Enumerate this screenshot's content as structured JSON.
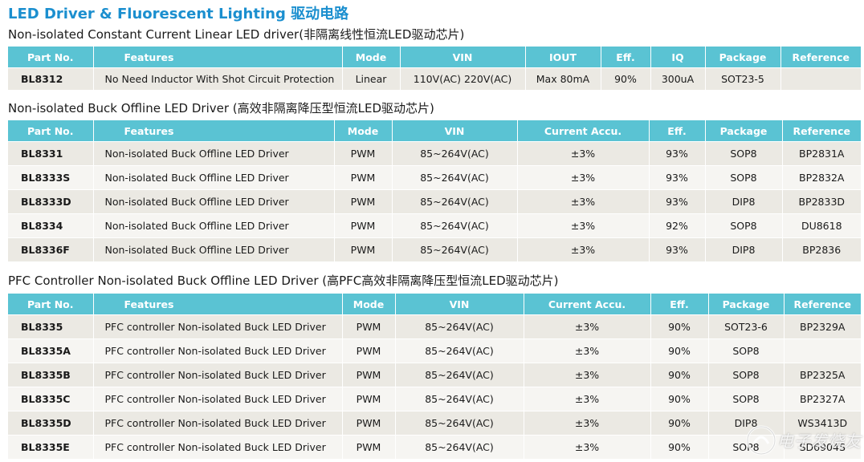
{
  "page_title": "LED Driver & Fluorescent Lighting 驱动电路",
  "sections": [
    {
      "title": "Non-isolated Constant Current Linear LED driver(非隔离线性恒流LED驱动芯片)",
      "headers": [
        "Part No.",
        "Features",
        "Mode",
        "VIN",
        "IOUT",
        "Eff.",
        "IQ",
        "Package",
        "Reference"
      ],
      "rows": [
        [
          "BL8312",
          "No Need Inductor With Shot Circuit Protection",
          "Linear",
          "110V(AC) 220V(AC)",
          "Max 80mA",
          "90%",
          "300uA",
          "SOT23-5",
          ""
        ]
      ]
    },
    {
      "title": "Non-isolated Buck Offline LED Driver (高效非隔离降压型恒流LED驱动芯片)",
      "headers": [
        "Part No.",
        "Features",
        "Mode",
        "VIN",
        "Current Accu.",
        "Eff.",
        "Package",
        "Reference"
      ],
      "rows": [
        [
          "BL8331",
          "Non-isolated Buck Offline LED Driver",
          "PWM",
          "85~264V(AC)",
          "±3%",
          "93%",
          "SOP8",
          "BP2831A"
        ],
        [
          "BL8333S",
          "Non-isolated Buck Offline LED Driver",
          "PWM",
          "85~264V(AC)",
          "±3%",
          "93%",
          "SOP8",
          "BP2832A"
        ],
        [
          "BL8333D",
          "Non-isolated Buck Offline LED Driver",
          "PWM",
          "85~264V(AC)",
          "±3%",
          "93%",
          "DIP8",
          "BP2833D"
        ],
        [
          "BL8334",
          "Non-isolated Buck Offline LED Driver",
          "PWM",
          "85~264V(AC)",
          "±3%",
          "92%",
          "SOP8",
          "DU8618"
        ],
        [
          "BL8336F",
          "Non-isolated Buck Offline LED Driver",
          "PWM",
          "85~264V(AC)",
          "±3%",
          "93%",
          "DIP8",
          "BP2836"
        ]
      ]
    },
    {
      "title": "PFC Controller Non-isolated Buck Offline LED Driver (高PFC高效非隔离降压型恒流LED驱动芯片)",
      "headers": [
        "Part No.",
        "Features",
        "Mode",
        "VIN",
        "Current Accu.",
        "Eff.",
        "Package",
        "Reference"
      ],
      "rows": [
        [
          "BL8335",
          "PFC controller Non-isolated Buck LED Driver",
          "PWM",
          "85~264V(AC)",
          "±3%",
          "90%",
          "SOT23-6",
          "BP2329A"
        ],
        [
          "BL8335A",
          "PFC controller Non-isolated Buck LED Driver",
          "PWM",
          "85~264V(AC)",
          "±3%",
          "90%",
          "SOP8",
          ""
        ],
        [
          "BL8335B",
          "PFC controller Non-isolated Buck LED Driver",
          "PWM",
          "85~264V(AC)",
          "±3%",
          "90%",
          "SOP8",
          "BP2325A"
        ],
        [
          "BL8335C",
          "PFC controller Non-isolated Buck LED Driver",
          "PWM",
          "85~264V(AC)",
          "±3%",
          "90%",
          "SOP8",
          "BP2327A"
        ],
        [
          "BL8335D",
          "PFC controller Non-isolated Buck LED Driver",
          "PWM",
          "85~264V(AC)",
          "±3%",
          "90%",
          "DIP8",
          "WS3413D"
        ],
        [
          "BL8335E",
          "PFC controller Non-isolated Buck LED Driver",
          "PWM",
          "85~264V(AC)",
          "±3%",
          "90%",
          "SOP8",
          "SD6904S"
        ]
      ]
    }
  ],
  "watermark": "电子发烧友",
  "colors": {
    "title": "#1b8fcf",
    "header_bg": "#5ac3d3",
    "row_shade": "#ebe9e3",
    "row_plain": "#f6f5f2"
  }
}
